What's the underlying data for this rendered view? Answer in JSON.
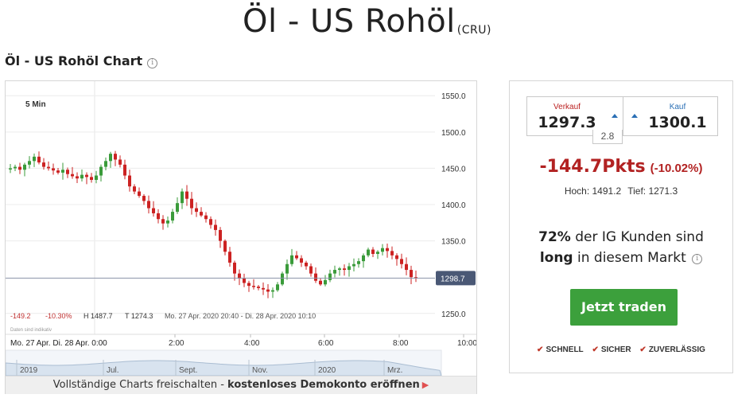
{
  "page": {
    "title": "Öl - US Rohöl",
    "code": "(CRU)",
    "section_title": "Öl - US Rohöl Chart",
    "info_icon": "info-icon"
  },
  "chart": {
    "interval": "5 Min",
    "last_price_label": "1298.7",
    "y_ticks": [
      "1550.0",
      "1500.0",
      "1450.0",
      "1400.0",
      "1350.0",
      "1250.0"
    ],
    "x_ticks": [
      "2:00",
      "4:00",
      "6:00",
      "8:00",
      "10:00"
    ],
    "date_range": "Mo. 27 Apr.   Di. 28 Apr. 0:00",
    "stats": {
      "change": "-149.2",
      "change_pct": "-10.30%",
      "high": "H 1487.7",
      "low": "T 1274.3",
      "period": "Mo. 27 Apr. 2020 20:40 - Di. 28 Apr. 2020 10:10"
    },
    "disclaimer": "Daten sind indikativ",
    "nav_labels": [
      "2019",
      "Jul.",
      "Sept.",
      "Nov.",
      "2020",
      "Mrz."
    ],
    "colors": {
      "up": "#3a9b3a",
      "down": "#cc2222",
      "axis_label_bg": "#4a5875"
    }
  },
  "chart_data": {
    "type": "candlestick",
    "title": "",
    "ylim": [
      1230,
      1570
    ],
    "x_axis_labels": [
      "2:00",
      "4:00",
      "6:00",
      "8:00",
      "10:00"
    ],
    "y_axis_labels": [
      1250,
      1350,
      1400,
      1450,
      1500,
      1550
    ],
    "last": 1298.7,
    "high": 1487.7,
    "low": 1274.3,
    "series": [
      {
        "values": [
          1450,
          1452,
          1448,
          1455,
          1460,
          1466,
          1458,
          1452,
          1450,
          1447,
          1444,
          1448,
          1442,
          1439,
          1436,
          1441,
          1438,
          1434,
          1440,
          1452,
          1460,
          1470,
          1462,
          1455,
          1440,
          1425,
          1418,
          1412,
          1405,
          1395,
          1388,
          1380,
          1374,
          1378,
          1390,
          1402,
          1418,
          1408,
          1395,
          1390,
          1385,
          1380,
          1372,
          1365,
          1350,
          1335,
          1320,
          1305,
          1298,
          1292,
          1288,
          1287,
          1285,
          1283,
          1280,
          1282,
          1290,
          1305,
          1318,
          1330,
          1326,
          1320,
          1315,
          1305,
          1295,
          1290,
          1296,
          1305,
          1310,
          1312,
          1310,
          1315,
          1318,
          1322,
          1330,
          1338,
          1332,
          1335,
          1340,
          1336,
          1330,
          1325,
          1318,
          1310,
          1300,
          1298.7
        ]
      }
    ]
  },
  "cta": {
    "text": "Vollständige Charts freischalten - ",
    "bold": "kostenloses Demokonto eröffnen",
    "arrow": "▶"
  },
  "panel": {
    "sell_label": "Verkauf",
    "sell_value": "1297.3",
    "buy_label": "Kauf",
    "buy_value": "1300.1",
    "spread": "2.8",
    "change_pts": "-144.7Pkts",
    "change_pct": "(-10.02%)",
    "high": "Hoch: 1491.2",
    "low": "Tief: 1271.3",
    "sentiment_pct": "72%",
    "sentiment_text1": " der IG Kunden sind",
    "sentiment_bold": "long",
    "sentiment_text2": " in diesem Markt ",
    "trade_button": "Jetzt traden",
    "features": [
      "SCHNELL",
      "SICHER",
      "ZUVERLÄSSIG"
    ]
  }
}
